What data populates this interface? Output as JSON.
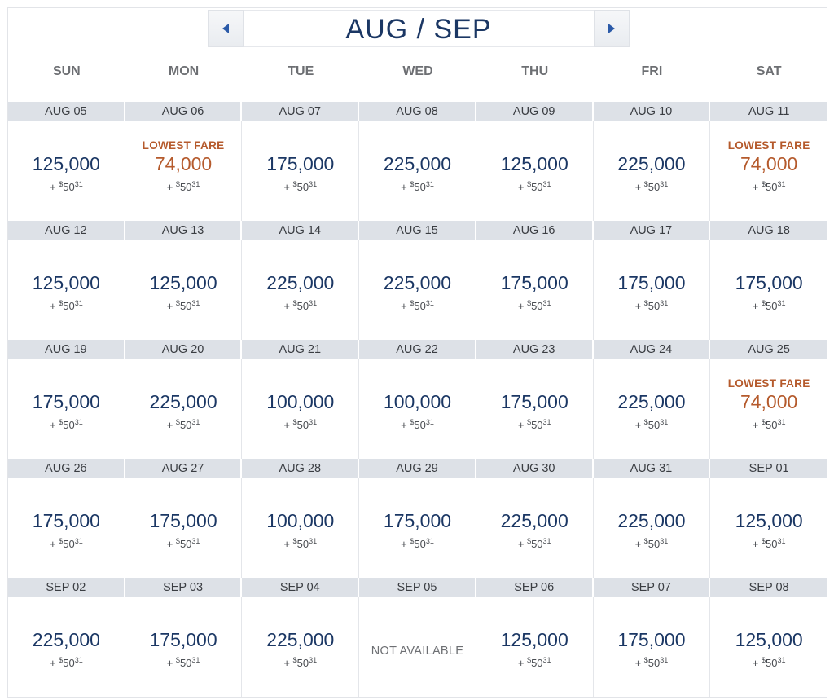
{
  "header": {
    "month_title": "AUG / SEP",
    "prev_icon": "caret-left-icon",
    "next_icon": "caret-right-icon"
  },
  "weekdays": [
    "SUN",
    "MON",
    "TUE",
    "WED",
    "THU",
    "FRI",
    "SAT"
  ],
  "colors": {
    "accent_navy": "#1b3764",
    "lowest_fare": "#b55a2c",
    "date_bar": "#dde1e7"
  },
  "weeks": [
    {
      "dates": [
        "AUG 05",
        "AUG 06",
        "AUG 07",
        "AUG 08",
        "AUG 09",
        "AUG 10",
        "AUG 11"
      ],
      "fares": [
        {
          "miles": "125,000",
          "plus": "+ ",
          "cur": "$",
          "dollars": "50",
          "cents": "31"
        },
        {
          "label": "LOWEST FARE",
          "miles": "74,000",
          "plus": "+ ",
          "cur": "$",
          "dollars": "50",
          "cents": "31",
          "lowest": true
        },
        {
          "miles": "175,000",
          "plus": "+ ",
          "cur": "$",
          "dollars": "50",
          "cents": "31"
        },
        {
          "miles": "225,000",
          "plus": "+ ",
          "cur": "$",
          "dollars": "50",
          "cents": "31"
        },
        {
          "miles": "125,000",
          "plus": "+ ",
          "cur": "$",
          "dollars": "50",
          "cents": "31"
        },
        {
          "miles": "225,000",
          "plus": "+ ",
          "cur": "$",
          "dollars": "50",
          "cents": "31"
        },
        {
          "label": "LOWEST FARE",
          "miles": "74,000",
          "plus": "+ ",
          "cur": "$",
          "dollars": "50",
          "cents": "31",
          "lowest": true
        }
      ]
    },
    {
      "dates": [
        "AUG 12",
        "AUG 13",
        "AUG 14",
        "AUG 15",
        "AUG 16",
        "AUG 17",
        "AUG 18"
      ],
      "fares": [
        {
          "miles": "125,000",
          "plus": "+ ",
          "cur": "$",
          "dollars": "50",
          "cents": "31"
        },
        {
          "miles": "125,000",
          "plus": "+ ",
          "cur": "$",
          "dollars": "50",
          "cents": "31"
        },
        {
          "miles": "225,000",
          "plus": "+ ",
          "cur": "$",
          "dollars": "50",
          "cents": "31"
        },
        {
          "miles": "225,000",
          "plus": "+ ",
          "cur": "$",
          "dollars": "50",
          "cents": "31"
        },
        {
          "miles": "175,000",
          "plus": "+ ",
          "cur": "$",
          "dollars": "50",
          "cents": "31"
        },
        {
          "miles": "175,000",
          "plus": "+ ",
          "cur": "$",
          "dollars": "50",
          "cents": "31"
        },
        {
          "miles": "175,000",
          "plus": "+ ",
          "cur": "$",
          "dollars": "50",
          "cents": "31"
        }
      ]
    },
    {
      "dates": [
        "AUG 19",
        "AUG 20",
        "AUG 21",
        "AUG 22",
        "AUG 23",
        "AUG 24",
        "AUG 25"
      ],
      "fares": [
        {
          "miles": "175,000",
          "plus": "+ ",
          "cur": "$",
          "dollars": "50",
          "cents": "31"
        },
        {
          "miles": "225,000",
          "plus": "+ ",
          "cur": "$",
          "dollars": "50",
          "cents": "31"
        },
        {
          "miles": "100,000",
          "plus": "+ ",
          "cur": "$",
          "dollars": "50",
          "cents": "31"
        },
        {
          "miles": "100,000",
          "plus": "+ ",
          "cur": "$",
          "dollars": "50",
          "cents": "31"
        },
        {
          "miles": "175,000",
          "plus": "+ ",
          "cur": "$",
          "dollars": "50",
          "cents": "31"
        },
        {
          "miles": "225,000",
          "plus": "+ ",
          "cur": "$",
          "dollars": "50",
          "cents": "31"
        },
        {
          "label": "LOWEST FARE",
          "miles": "74,000",
          "plus": "+ ",
          "cur": "$",
          "dollars": "50",
          "cents": "31",
          "lowest": true
        }
      ]
    },
    {
      "dates": [
        "AUG 26",
        "AUG 27",
        "AUG 28",
        "AUG 29",
        "AUG 30",
        "AUG 31",
        "SEP 01"
      ],
      "fares": [
        {
          "miles": "175,000",
          "plus": "+ ",
          "cur": "$",
          "dollars": "50",
          "cents": "31"
        },
        {
          "miles": "175,000",
          "plus": "+ ",
          "cur": "$",
          "dollars": "50",
          "cents": "31"
        },
        {
          "miles": "100,000",
          "plus": "+ ",
          "cur": "$",
          "dollars": "50",
          "cents": "31"
        },
        {
          "miles": "175,000",
          "plus": "+ ",
          "cur": "$",
          "dollars": "50",
          "cents": "31"
        },
        {
          "miles": "225,000",
          "plus": "+ ",
          "cur": "$",
          "dollars": "50",
          "cents": "31"
        },
        {
          "miles": "225,000",
          "plus": "+ ",
          "cur": "$",
          "dollars": "50",
          "cents": "31"
        },
        {
          "miles": "125,000",
          "plus": "+ ",
          "cur": "$",
          "dollars": "50",
          "cents": "31"
        }
      ]
    },
    {
      "dates": [
        "SEP 02",
        "SEP 03",
        "SEP 04",
        "SEP 05",
        "SEP 06",
        "SEP 07",
        "SEP 08"
      ],
      "fares": [
        {
          "miles": "225,000",
          "plus": "+ ",
          "cur": "$",
          "dollars": "50",
          "cents": "31"
        },
        {
          "miles": "175,000",
          "plus": "+ ",
          "cur": "$",
          "dollars": "50",
          "cents": "31"
        },
        {
          "miles": "225,000",
          "plus": "+ ",
          "cur": "$",
          "dollars": "50",
          "cents": "31"
        },
        {
          "unavailable": "NOT AVAILABLE"
        },
        {
          "miles": "125,000",
          "plus": "+ ",
          "cur": "$",
          "dollars": "50",
          "cents": "31"
        },
        {
          "miles": "175,000",
          "plus": "+ ",
          "cur": "$",
          "dollars": "50",
          "cents": "31"
        },
        {
          "miles": "125,000",
          "plus": "+ ",
          "cur": "$",
          "dollars": "50",
          "cents": "31"
        }
      ]
    }
  ]
}
